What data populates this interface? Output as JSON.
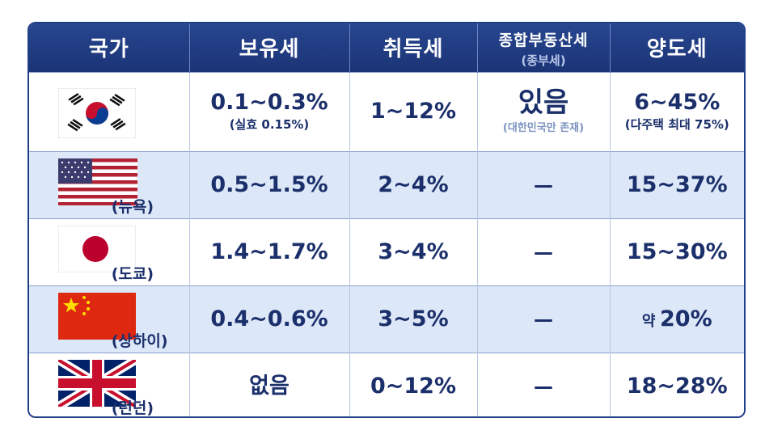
{
  "header": {
    "country": "국가",
    "holding": "보유세",
    "acquisition": "취득세",
    "comprehensive": "종합부동산세",
    "comprehensive_sub": "(종부세)",
    "transfer": "양도세"
  },
  "rows": [
    {
      "flag": "south-korea-flag",
      "city": "",
      "holding": "0.1~0.3%",
      "holding_note": "(실효 0.15%)",
      "acquisition": "1~12%",
      "comprehensive": "있음",
      "comprehensive_note": "(대한민국만 존재)",
      "transfer": "6~45%",
      "transfer_note": "(다주택 최대 75%)"
    },
    {
      "flag": "usa-flag",
      "city": "(뉴욕)",
      "holding": "0.5~1.5%",
      "acquisition": "2~4%",
      "comprehensive": "—",
      "transfer": "15~37%"
    },
    {
      "flag": "japan-flag",
      "city": "(도쿄)",
      "holding": "1.4~1.7%",
      "acquisition": "3~4%",
      "comprehensive": "—",
      "transfer": "15~30%"
    },
    {
      "flag": "china-flag",
      "city": "(상하이)",
      "holding": "0.4~0.6%",
      "acquisition": "3~5%",
      "comprehensive": "—",
      "transfer_prefix": "약",
      "transfer": "20%"
    },
    {
      "flag": "uk-flag",
      "city": "(런던)",
      "holding": "없음",
      "acquisition": "0~12%",
      "comprehensive": "—",
      "transfer": "18~28%"
    }
  ],
  "colors": {
    "header_bg": "#1f3f86",
    "text": "#1b2f6b",
    "row_alt": "#dce8f8"
  },
  "chart_data": {
    "type": "table",
    "columns": [
      "국가",
      "보유세",
      "취득세",
      "종합부동산세 (종부세)",
      "양도세"
    ],
    "rows": [
      [
        "",
        "0.1~0.3% (실효 0.15%)",
        "1~12%",
        "있음 (대한민국만 존재)",
        "6~45% (다주택 최대 75%)"
      ],
      [
        "(뉴욕)",
        "0.5~1.5%",
        "2~4%",
        "—",
        "15~37%"
      ],
      [
        "(도쿄)",
        "1.4~1.7%",
        "3~4%",
        "—",
        "15~30%"
      ],
      [
        "(상하이)",
        "0.4~0.6%",
        "3~5%",
        "—",
        "약 20%"
      ],
      [
        "(런던)",
        "없음",
        "0~12%",
        "—",
        "18~28%"
      ]
    ]
  }
}
